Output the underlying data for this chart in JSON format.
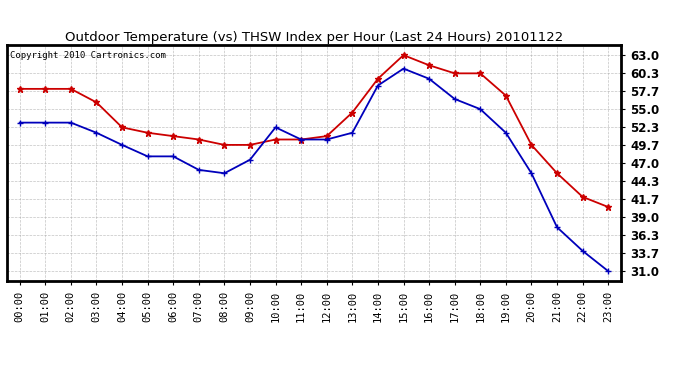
{
  "title": "Outdoor Temperature (vs) THSW Index per Hour (Last 24 Hours) 20101122",
  "copyright": "Copyright 2010 Cartronics.com",
  "hours": [
    "00:00",
    "01:00",
    "02:00",
    "03:00",
    "04:00",
    "05:00",
    "06:00",
    "07:00",
    "08:00",
    "09:00",
    "10:00",
    "11:00",
    "12:00",
    "13:00",
    "14:00",
    "15:00",
    "16:00",
    "17:00",
    "18:00",
    "19:00",
    "20:00",
    "21:00",
    "22:00",
    "23:00"
  ],
  "red_data": [
    58.0,
    58.0,
    58.0,
    56.0,
    52.3,
    51.5,
    51.0,
    50.5,
    49.7,
    49.7,
    50.5,
    50.5,
    51.0,
    54.5,
    59.5,
    63.0,
    61.5,
    60.3,
    60.3,
    57.0,
    49.7,
    45.5,
    42.0,
    40.5
  ],
  "blue_data": [
    53.0,
    53.0,
    53.0,
    51.5,
    49.7,
    48.0,
    48.0,
    46.0,
    45.5,
    47.5,
    52.3,
    50.5,
    50.5,
    51.5,
    58.5,
    61.0,
    59.5,
    56.5,
    55.0,
    51.5,
    45.5,
    37.5,
    34.0,
    31.0
  ],
  "y_ticks": [
    31.0,
    33.7,
    36.3,
    39.0,
    41.7,
    44.3,
    47.0,
    49.7,
    52.3,
    55.0,
    57.7,
    60.3,
    63.0
  ],
  "ylim": [
    29.5,
    64.5
  ],
  "bg_color": "#ffffff",
  "plot_bg_color": "#ffffff",
  "grid_color": "#aaaaaa",
  "red_color": "#cc0000",
  "blue_color": "#0000bb",
  "title_fontsize": 9.5,
  "copyright_fontsize": 6.5,
  "tick_fontsize": 7.5,
  "ytick_fontsize": 8.5
}
